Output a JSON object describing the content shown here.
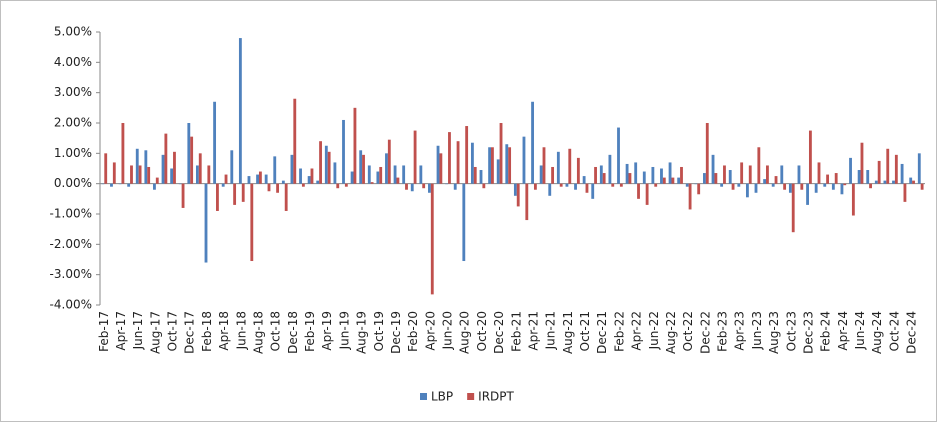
{
  "chart_data": {
    "type": "bar",
    "categories": [
      "Feb-17",
      null,
      "Apr-17",
      null,
      "Jun-17",
      null,
      "Aug-17",
      null,
      "Oct-17",
      null,
      "Dec-17",
      null,
      "Feb-18",
      null,
      "Apr-18",
      null,
      "Jun-18",
      null,
      "Aug-18",
      null,
      "Oct-18",
      null,
      "Dec-18",
      null,
      "Feb-19",
      null,
      "Apr-19",
      null,
      "Jun-19",
      null,
      "Aug-19",
      null,
      "Oct-19",
      null,
      "Dec-19",
      null,
      "Feb-20",
      null,
      "Apr-20",
      null,
      "Jun-20",
      null,
      "Aug-20",
      null,
      "Oct-20",
      null,
      "Dec-20",
      null,
      "Feb-21",
      null,
      "Apr-21",
      null,
      "Jun-21",
      null,
      "Aug-21",
      null,
      "Oct-21",
      null,
      "Dec-21",
      null,
      "Feb-22",
      null,
      "Apr-22",
      null,
      "Jun-22",
      null,
      "Aug-22",
      null,
      "Oct-22",
      null,
      "Dec-22",
      null,
      "Feb-23",
      null,
      "Apr-23",
      null,
      "Jun-23",
      null,
      "Aug-23",
      null,
      "Oct-23",
      null,
      "Dec-23",
      null,
      "Feb-24",
      null,
      "Apr-24",
      null,
      "Jun-24",
      null,
      "Aug-24",
      null,
      "Oct-24",
      null,
      "Dec-24",
      null
    ],
    "series": [
      {
        "name": "LBP",
        "color": "#4f81bd",
        "values": [
          0.0,
          -0.1,
          0.0,
          -0.1,
          1.15,
          1.1,
          -0.2,
          0.95,
          0.5,
          0.0,
          2.0,
          0.6,
          -2.6,
          2.7,
          -0.1,
          1.1,
          4.8,
          0.25,
          0.3,
          0.3,
          0.9,
          0.1,
          0.95,
          0.5,
          0.25,
          0.1,
          1.25,
          0.7,
          2.1,
          0.4,
          1.1,
          0.6,
          0.4,
          1.0,
          0.6,
          0.6,
          -0.25,
          0.6,
          -0.3,
          1.25,
          0.0,
          -0.2,
          -2.55,
          1.35,
          0.45,
          1.2,
          0.8,
          1.3,
          -0.4,
          1.55,
          2.7,
          0.6,
          -0.4,
          1.05,
          -0.1,
          -0.2,
          0.25,
          -0.5,
          0.6,
          0.95,
          1.85,
          0.65,
          0.7,
          0.4,
          0.55,
          0.5,
          0.7,
          0.2,
          -0.1,
          0.0,
          0.35,
          0.95,
          -0.1,
          0.45,
          -0.1,
          -0.45,
          -0.3,
          0.15,
          -0.1,
          0.6,
          -0.3,
          0.6,
          -0.7,
          -0.3,
          -0.1,
          -0.2,
          -0.35,
          0.85,
          0.45,
          0.45,
          0.1,
          0.1,
          0.1,
          0.65,
          0.2,
          1.0
        ]
      },
      {
        "name": "IRDPT",
        "color": "#c0504d",
        "values": [
          1.0,
          0.7,
          2.0,
          0.6,
          0.6,
          0.55,
          0.2,
          1.65,
          1.05,
          -0.8,
          1.55,
          1.0,
          0.6,
          -0.9,
          0.3,
          -0.7,
          -0.6,
          -2.55,
          0.4,
          -0.25,
          -0.3,
          -0.9,
          2.8,
          -0.1,
          0.5,
          1.4,
          1.05,
          -0.15,
          -0.1,
          2.5,
          0.95,
          0.05,
          0.55,
          1.45,
          0.2,
          -0.2,
          1.75,
          -0.15,
          -3.65,
          1.0,
          1.7,
          1.4,
          1.9,
          0.55,
          -0.15,
          1.2,
          2.0,
          1.2,
          -0.75,
          -1.2,
          -0.2,
          1.2,
          0.55,
          -0.1,
          1.15,
          0.85,
          -0.3,
          0.55,
          0.35,
          -0.1,
          -0.1,
          0.35,
          -0.5,
          -0.7,
          -0.1,
          0.2,
          0.2,
          0.55,
          -0.85,
          -0.35,
          2.0,
          0.35,
          0.6,
          -0.2,
          0.7,
          0.6,
          1.2,
          0.6,
          0.25,
          -0.2,
          -1.6,
          -0.2,
          1.75,
          0.7,
          0.3,
          0.35,
          -0.05,
          -1.05,
          1.35,
          -0.15,
          0.75,
          1.15,
          0.95,
          -0.6,
          0.1,
          -0.2
        ]
      }
    ],
    "ylim": [
      -4,
      5
    ],
    "yticks": [
      {
        "value": -4,
        "label": "-4.00%"
      },
      {
        "value": -3,
        "label": "-3.00%"
      },
      {
        "value": -2,
        "label": "-2.00%"
      },
      {
        "value": -1,
        "label": "-1.00%"
      },
      {
        "value": 0,
        "label": "0.00%"
      },
      {
        "value": 1,
        "label": "1.00%"
      },
      {
        "value": 2,
        "label": "2.00%"
      },
      {
        "value": 3,
        "label": "3.00%"
      },
      {
        "value": 4,
        "label": "4.00%"
      },
      {
        "value": 5,
        "label": "5.00%"
      }
    ],
    "legend": "bottom"
  }
}
